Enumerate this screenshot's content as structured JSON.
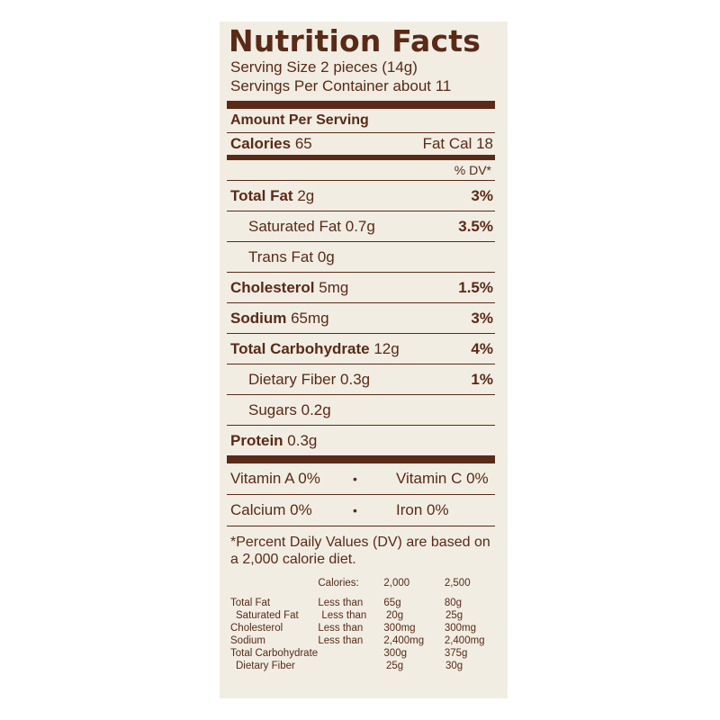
{
  "title": "Nutrition Facts",
  "serving_size": "Serving Size 2 pieces (14g)",
  "servings_per_container": "Servings Per Container about 11",
  "amount_per_serving": "Amount Per Serving",
  "calories": {
    "label": "Calories",
    "value": "65",
    "fat_cal": "Fat Cal 18"
  },
  "dv_header": "% DV*",
  "nutrients": [
    {
      "label": "Total Fat",
      "amount": "2g",
      "dv": "3%"
    },
    {
      "label": "Saturated Fat",
      "amount": "0.7g",
      "dv": "3.5%"
    },
    {
      "label": "Trans Fat",
      "amount": "0g",
      "dv": ""
    },
    {
      "label": "Cholesterol",
      "amount": "5mg",
      "dv": "1.5%"
    },
    {
      "label": "Sodium",
      "amount": "65mg",
      "dv": "3%"
    },
    {
      "label": "Total Carbohydrate",
      "amount": "12g",
      "dv": "4%"
    },
    {
      "label": "Dietary Fiber",
      "amount": "0.3g",
      "dv": "1%"
    },
    {
      "label": "Sugars",
      "amount": "0.2g",
      "dv": ""
    },
    {
      "label": "Protein",
      "amount": "0.3g",
      "dv": ""
    }
  ],
  "vitamins": [
    {
      "left": "Vitamin A  0%",
      "right": "Vitamin C  0%"
    },
    {
      "left": "Calcium  0%",
      "right": "Iron  0%"
    }
  ],
  "bullet": "•",
  "footnote": "*Percent Daily Values (DV) are based on a 2,000 calorie diet.",
  "dv_table": {
    "header": [
      "",
      "Calories:",
      "2,000",
      "2,500"
    ],
    "rows": [
      [
        "Total Fat",
        "Less than",
        "65g",
        "80g"
      ],
      [
        "Saturated Fat",
        "Less than",
        "20g",
        "25g"
      ],
      [
        "Cholesterol",
        "Less than",
        "300mg",
        "300mg"
      ],
      [
        "Sodium",
        "Less than",
        "2,400mg",
        "2,400mg"
      ],
      [
        "Total Carbohydrate",
        "",
        "300g",
        "375g"
      ],
      [
        "Dietary Fiber",
        "",
        "25g",
        "30g"
      ]
    ]
  }
}
